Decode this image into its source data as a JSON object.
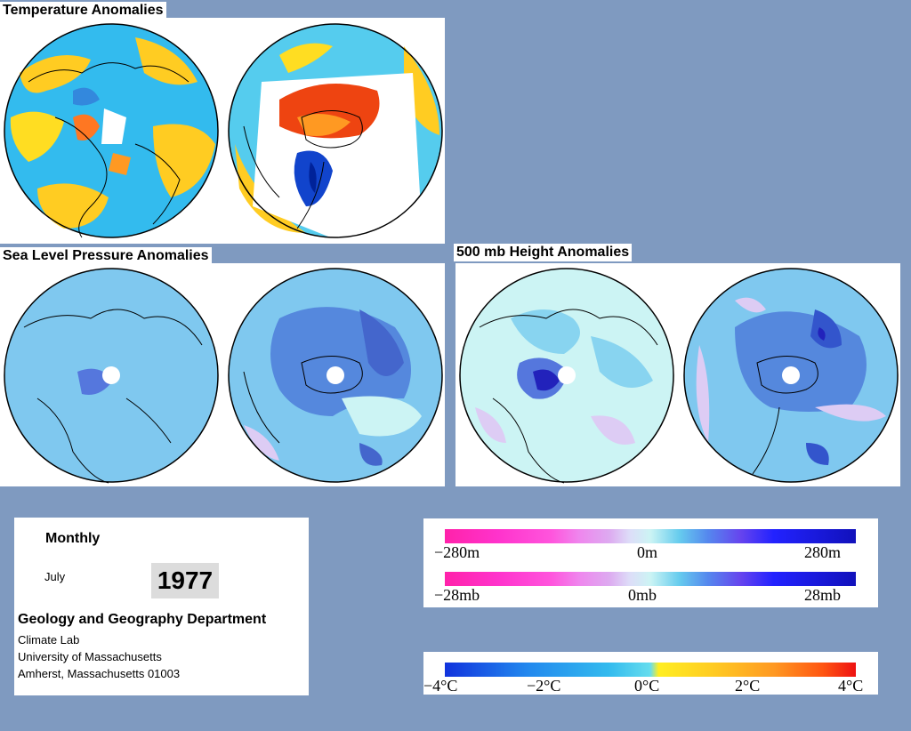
{
  "titles": {
    "temperature": "Temperature Anomalies",
    "slp": "Sea Level Pressure Anomalies",
    "height500": "500 mb Height Anomalies"
  },
  "info": {
    "period": "Monthly",
    "month": "July",
    "year": "1977",
    "department": "Geology and Geography Department",
    "lab": "Climate Lab",
    "university": "University of Massachusetts",
    "address": "Amherst, Massachusetts 01003"
  },
  "legends": {
    "height": {
      "left": "−280m",
      "mid": "0m",
      "right": "280m"
    },
    "pressure": {
      "left": "−28mb",
      "mid": "0mb",
      "right": "28mb"
    },
    "temperature": {
      "t1": "−4°C",
      "t2": "−2°C",
      "t3": "0°C",
      "t4": "2°C",
      "t5": "4°C"
    }
  },
  "colors": {
    "background": "#7f9ac0",
    "land_outline": "#000000",
    "ocean_base": "#7fbfef",
    "anomaly_scale_blue_pink": [
      "#ff33aa",
      "#ff33cc",
      "#ff44dd",
      "#ee66ee",
      "#dd99ee",
      "#ddccf4",
      "#ccf4f4",
      "#66ccee",
      "#5599ee",
      "#6655ee",
      "#3333ff",
      "#2222dd",
      "#1111bb"
    ],
    "temperature_scale": [
      "#1133dd",
      "#2288ee",
      "#33bbee",
      "#55ddee",
      "#ffee22",
      "#ffcc22",
      "#ff9922",
      "#ff5511",
      "#ee1111"
    ]
  }
}
